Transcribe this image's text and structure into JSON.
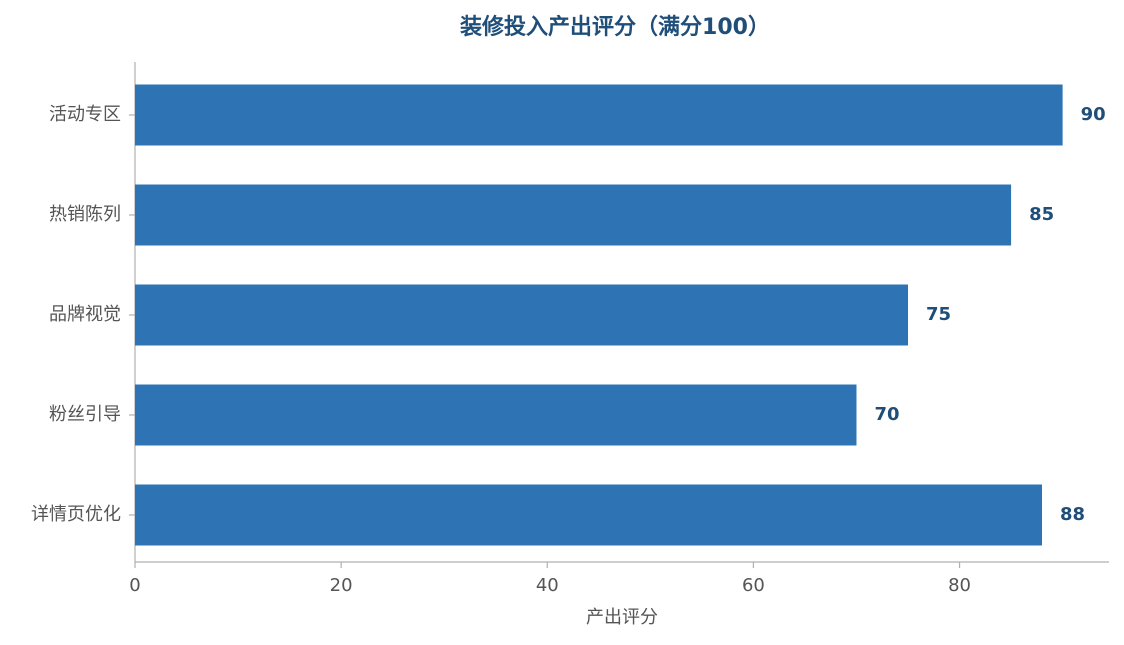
{
  "chart_data": {
    "type": "bar",
    "orientation": "horizontal",
    "title": "装修投入产出评分（满分100）",
    "x_label": "产出评分",
    "categories": [
      "活动专区",
      "热销陈列",
      "品牌视觉",
      "粉丝引导",
      "详情页优化"
    ],
    "values": [
      90,
      85,
      75,
      70,
      88
    ],
    "color": "#2e74b5",
    "xlim": [
      0,
      94.5
    ],
    "xticks": [
      0,
      20,
      40,
      60,
      80
    ],
    "grid": false
  }
}
